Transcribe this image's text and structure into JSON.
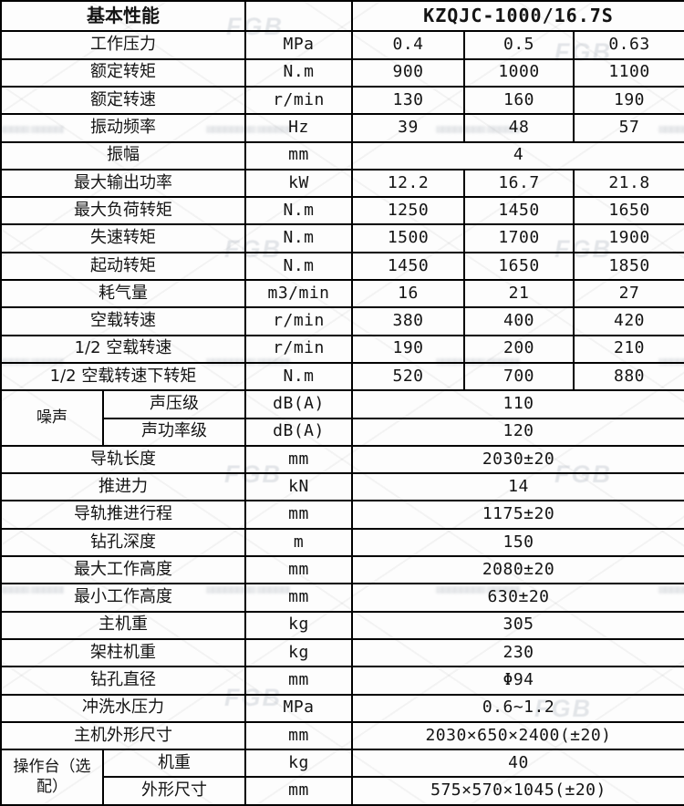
{
  "header": {
    "title": "基本性能",
    "model": "KZQJC-1000/16.7S"
  },
  "rows": [
    {
      "label": "工作压力",
      "unit": "MPa",
      "values": [
        "0.4",
        "0.5",
        "0.63"
      ]
    },
    {
      "label": "额定转矩",
      "unit": "N.m",
      "values": [
        "900",
        "1000",
        "1100"
      ]
    },
    {
      "label": "额定转速",
      "unit": "r/min",
      "values": [
        "130",
        "160",
        "190"
      ]
    },
    {
      "label": "振动频率",
      "unit": "Hz",
      "values": [
        "39",
        "48",
        "57"
      ]
    },
    {
      "label": "振幅",
      "unit": "mm",
      "values": [
        "4"
      ]
    },
    {
      "label": "最大输出功率",
      "unit": "kW",
      "values": [
        "12.2",
        "16.7",
        "21.8"
      ]
    },
    {
      "label": "最大负荷转矩",
      "unit": "N.m",
      "values": [
        "1250",
        "1450",
        "1650"
      ]
    },
    {
      "label": "失速转矩",
      "unit": "N.m",
      "values": [
        "1500",
        "1700",
        "1900"
      ]
    },
    {
      "label": "起动转矩",
      "unit": "N.m",
      "values": [
        "1450",
        "1650",
        "1850"
      ]
    },
    {
      "label": "耗气量",
      "unit": "m3/min",
      "values": [
        "16",
        "21",
        "27"
      ]
    },
    {
      "label": "空载转速",
      "unit": "r/min",
      "values": [
        "380",
        "400",
        "420"
      ]
    },
    {
      "label": "1/2 空载转速",
      "unit": "r/min",
      "values": [
        "190",
        "200",
        "210"
      ]
    },
    {
      "label": "1/2 空载转速下转矩",
      "unit": "N.m",
      "values": [
        "520",
        "700",
        "880"
      ]
    },
    {
      "group": "噪声",
      "group_rowspan": 2,
      "label": "声压级",
      "unit": "dB(A)",
      "values": [
        "110"
      ]
    },
    {
      "in_group": true,
      "label": "声功率级",
      "unit": "dB(A)",
      "values": [
        "120"
      ]
    },
    {
      "label": "导轨长度",
      "unit": "mm",
      "values": [
        "2030±20"
      ]
    },
    {
      "label": "推进力",
      "unit": "kN",
      "values": [
        "14"
      ]
    },
    {
      "label": "导轨推进行程",
      "unit": "mm",
      "values": [
        "1175±20"
      ]
    },
    {
      "label": "钻孔深度",
      "unit": "m",
      "values": [
        "150"
      ]
    },
    {
      "label": "最大工作高度",
      "unit": "mm",
      "values": [
        "2080±20"
      ]
    },
    {
      "label": "最小工作高度",
      "unit": "mm",
      "values": [
        "630±20"
      ]
    },
    {
      "label": "主机重",
      "unit": "kg",
      "values": [
        "305"
      ]
    },
    {
      "label": "架柱机重",
      "unit": "kg",
      "values": [
        "230"
      ]
    },
    {
      "label": "钻孔直径",
      "unit": "mm",
      "values": [
        "Φ94"
      ]
    },
    {
      "label": "冲洗水压力",
      "unit": "MPa",
      "values": [
        "0.6~1.2"
      ]
    },
    {
      "label": "主机外形尺寸",
      "unit": "mm",
      "values": [
        "2030×650×2400(±20)"
      ]
    },
    {
      "group": "操作台（选配）",
      "group_rowspan": 2,
      "label": "机重",
      "unit": "kg",
      "values": [
        "40"
      ]
    },
    {
      "in_group": true,
      "label": "外形尺寸",
      "unit": "mm",
      "values": [
        "575×570×1045(±20)"
      ]
    }
  ],
  "watermark": {
    "monogram": "FGB",
    "smudge_glyphs": "▒▒▒▒▒▒▒▒ ▒▒▒▒▒▒▒▒"
  },
  "colors": {
    "border": "#000000",
    "text": "#141414",
    "watermark": "#b9bfc8",
    "background": "#fdfdfd"
  }
}
